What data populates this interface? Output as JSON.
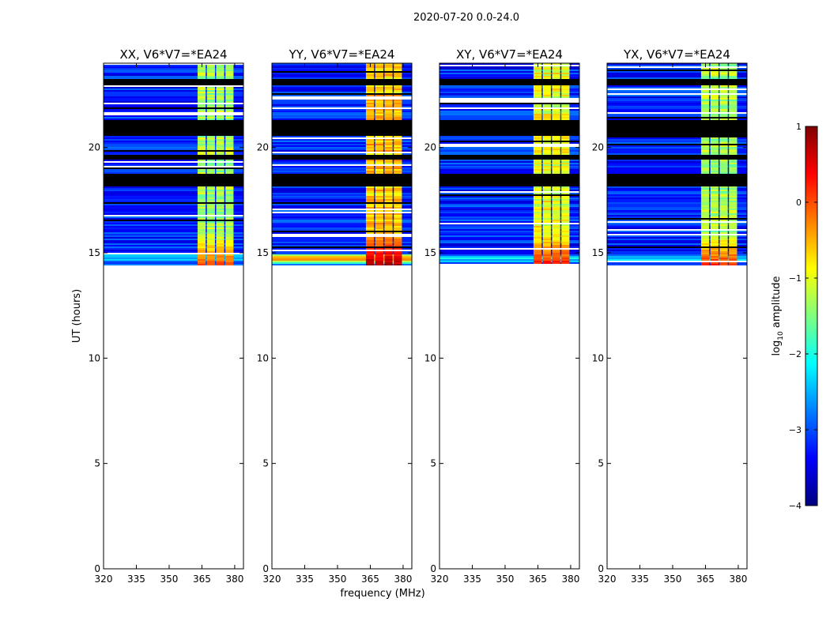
{
  "figure_title": "2020-07-20 0.0-24.0",
  "chart_data": {
    "type": "heatmap",
    "title": "2020-07-20 0.0-24.0",
    "xlabel": "frequency (MHz)",
    "ylabel": "UT (hours)",
    "xlim": [
      320,
      384
    ],
    "ylim": [
      0,
      24
    ],
    "x_ticks": [
      320,
      335,
      350,
      365,
      380
    ],
    "y_ticks": [
      0,
      5,
      10,
      15,
      20
    ],
    "x_tick_labels": [
      "320",
      "335",
      "350",
      "365",
      "380"
    ],
    "y_tick_labels": [
      "0",
      "5",
      "10",
      "15",
      "20"
    ],
    "colorbar": {
      "label": "log10 amplitude",
      "label_base": "log",
      "label_sub": "10",
      "label_rest": " amplitude",
      "range": [
        -4,
        1
      ],
      "ticks": [
        1,
        0,
        -1,
        -2,
        -3,
        -4
      ],
      "tick_labels": [
        "1",
        "0",
        "−1",
        "−2",
        "−3",
        "−4"
      ],
      "colormap": [
        "#00007f",
        "#0000ff",
        "#007fff",
        "#00ffff",
        "#7fff7f",
        "#ffff00",
        "#ff7f00",
        "#ff0000",
        "#7f0000"
      ]
    },
    "data_coverage_ut": [
      14.4,
      24
    ],
    "strong_rfi_band_mhz": [
      363,
      380
    ],
    "flagged_rows_ut": [
      [
        18.2,
        18.8
      ],
      [
        19.5,
        19.7
      ],
      [
        20.6,
        21.3
      ],
      [
        23.0,
        23.3
      ]
    ],
    "panels": [
      {
        "title": "XX, V6*V7=*EA24",
        "peak_log_amplitude": 0.0,
        "rfi_log_amplitude": -1.3
      },
      {
        "title": "YY, V6*V7=*EA24",
        "peak_log_amplitude": 0.8,
        "rfi_log_amplitude": -0.6
      },
      {
        "title": "XY, V6*V7=*EA24",
        "peak_log_amplitude": 0.3,
        "rfi_log_amplitude": -1.0
      },
      {
        "title": "YX, V6*V7=*EA24",
        "peak_log_amplitude": 0.2,
        "rfi_log_amplitude": -1.3
      }
    ]
  }
}
